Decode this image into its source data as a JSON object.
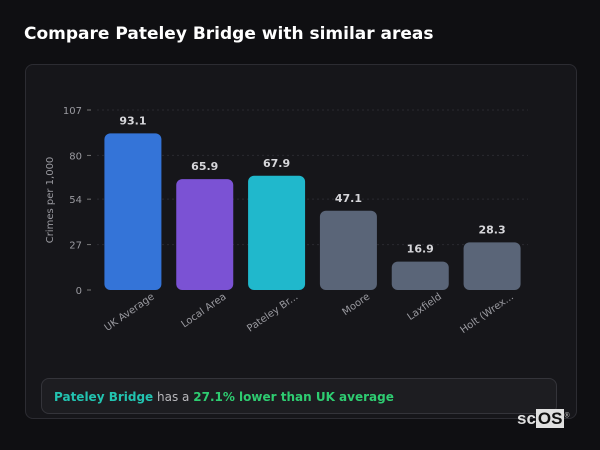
{
  "header": {
    "title": "Compare Pateley Bridge with similar areas"
  },
  "chart_data": {
    "type": "bar",
    "title": "",
    "xlabel": "",
    "ylabel": "Crimes per 1,000",
    "ylim": [
      0,
      107
    ],
    "yticks": [
      0,
      27,
      54,
      80,
      107
    ],
    "grid": true,
    "categories": [
      "UK Average",
      "Local Area",
      "Pateley Br...",
      "Moore",
      "Laxfield",
      "Holt (Wrex..."
    ],
    "values": [
      93.1,
      65.9,
      67.9,
      47.1,
      16.9,
      28.3
    ],
    "colors": [
      "#3474d8",
      "#7b52d4",
      "#20b8cc",
      "#5a6578",
      "#5a6578",
      "#5a6578"
    ]
  },
  "summary": {
    "place": "Pateley Bridge",
    "middle": "has a",
    "difference": "27.1% lower than UK average"
  },
  "logo": {
    "text_a": "sc",
    "text_b": "OS",
    "mark": "®"
  }
}
